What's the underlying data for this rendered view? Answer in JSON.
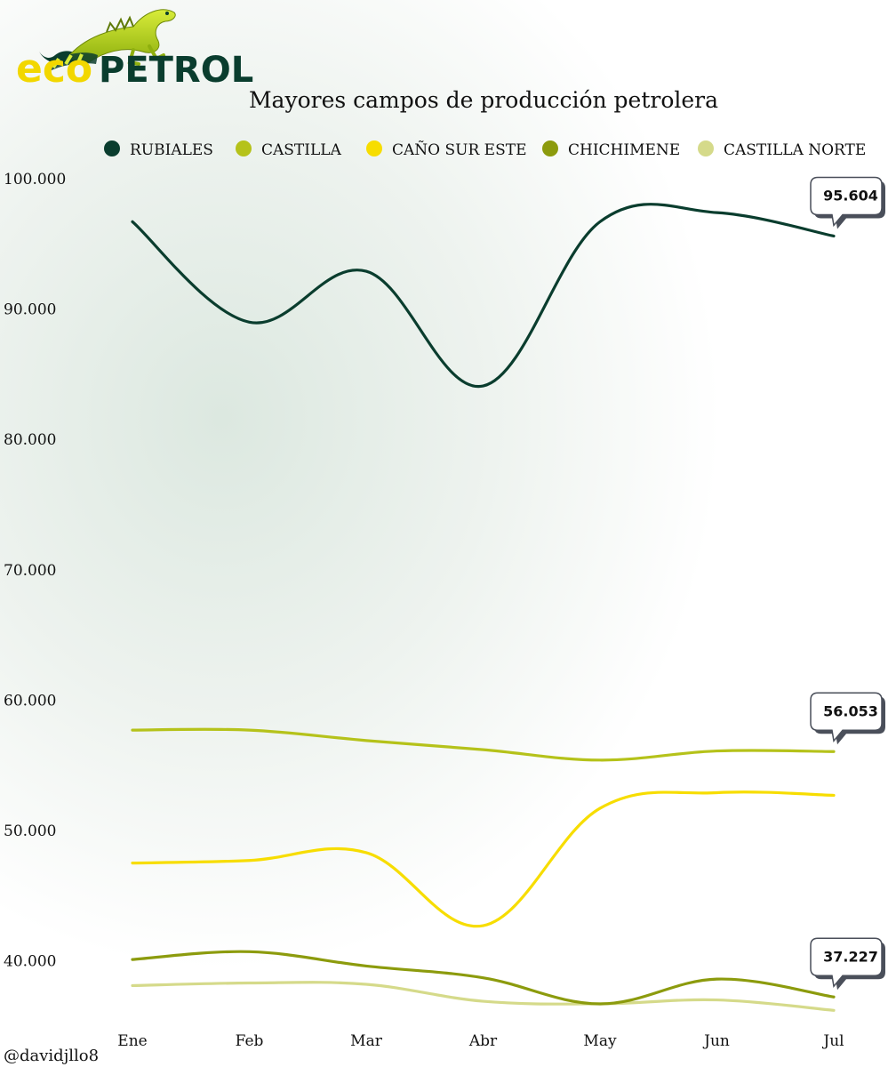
{
  "logo": {
    "part1": "eco",
    "part2": "PETROL"
  },
  "credit": "@davidjllo8",
  "colors": {
    "RUBIALES": "#0a3d2e",
    "CASTILLA": "#b5c21a",
    "CAÑO SUR ESTE": "#f7dd00",
    "CHICHIMENE": "#8c9b0d",
    "CASTILLA NORTE": "#d5da8a"
  },
  "chart_data": {
    "type": "line",
    "title": "Mayores campos de producción petrolera",
    "xlabel": "",
    "ylabel": "",
    "categories": [
      "Ene",
      "Feb",
      "Mar",
      "Abr",
      "May",
      "Jun",
      "Jul"
    ],
    "ylim": [
      35000,
      100000
    ],
    "yticks": [
      40000,
      50000,
      60000,
      70000,
      80000,
      90000,
      100000
    ],
    "ytick_labels": [
      "40.000",
      "50.000",
      "60.000",
      "70.000",
      "80.000",
      "90.000",
      "100.000"
    ],
    "legend_position": "top",
    "series": [
      {
        "name": "RUBIALES",
        "values": [
          96700,
          89000,
          92900,
          84100,
          96700,
          97400,
          95604
        ]
      },
      {
        "name": "CASTILLA",
        "values": [
          57700,
          57700,
          56900,
          56200,
          55400,
          56100,
          56053
        ]
      },
      {
        "name": "CAÑO SUR ESTE",
        "values": [
          47500,
          47700,
          48300,
          42700,
          51700,
          52900,
          52700
        ]
      },
      {
        "name": "CHICHIMENE",
        "values": [
          40100,
          40700,
          39600,
          38700,
          36700,
          38600,
          37227
        ]
      },
      {
        "name": "CASTILLA NORTE",
        "values": [
          38100,
          38300,
          38200,
          36900,
          36700,
          37000,
          36200
        ]
      }
    ],
    "annotations": [
      {
        "series": "RUBIALES",
        "label": "95.604"
      },
      {
        "series": "CASTILLA",
        "label": "56.053"
      },
      {
        "series": "CHICHIMENE",
        "label": "37.227"
      }
    ]
  }
}
